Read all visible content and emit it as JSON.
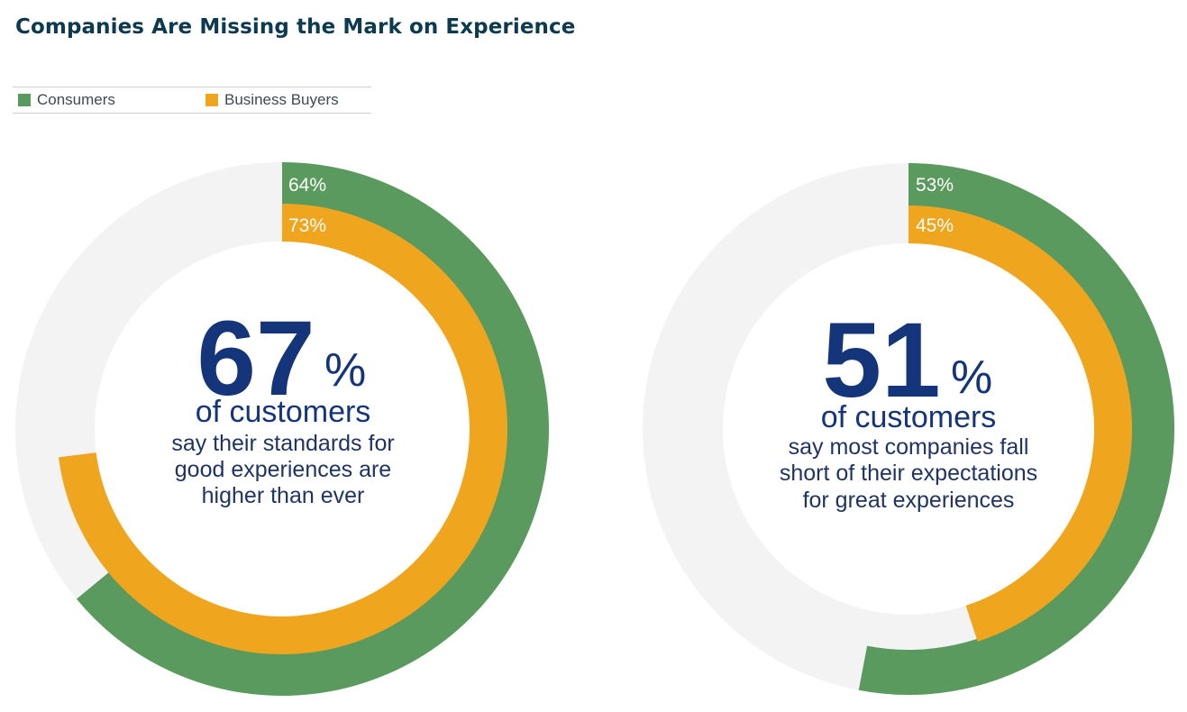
{
  "title": "Companies Are Missing the Mark on Experience",
  "legend": [
    {
      "label": "Consumers",
      "color": "#5b9a5e"
    },
    {
      "label": "Business Buyers",
      "color": "#efa51e"
    }
  ],
  "chart_data": [
    {
      "type": "donut",
      "series": [
        {
          "name": "Consumers",
          "value": 64,
          "label": "64%"
        },
        {
          "name": "Business Buyers",
          "value": 73,
          "label": "73%"
        }
      ],
      "headline": {
        "value": "67",
        "unit": "%",
        "subject": "of customers"
      },
      "caption": [
        "say their standards for",
        "good experiences are",
        "higher than ever"
      ]
    },
    {
      "type": "donut",
      "series": [
        {
          "name": "Consumers",
          "value": 53,
          "label": "53%"
        },
        {
          "name": "Business Buyers",
          "value": 45,
          "label": "45%"
        }
      ],
      "headline": {
        "value": "51",
        "unit": "%",
        "subject": "of customers"
      },
      "caption": [
        "say most companies fall",
        "short of their expectations",
        "for great experiences"
      ]
    }
  ],
  "colors": {
    "track": "#f4f3f3",
    "headline": "#15357a",
    "caption": "#1f3462"
  }
}
